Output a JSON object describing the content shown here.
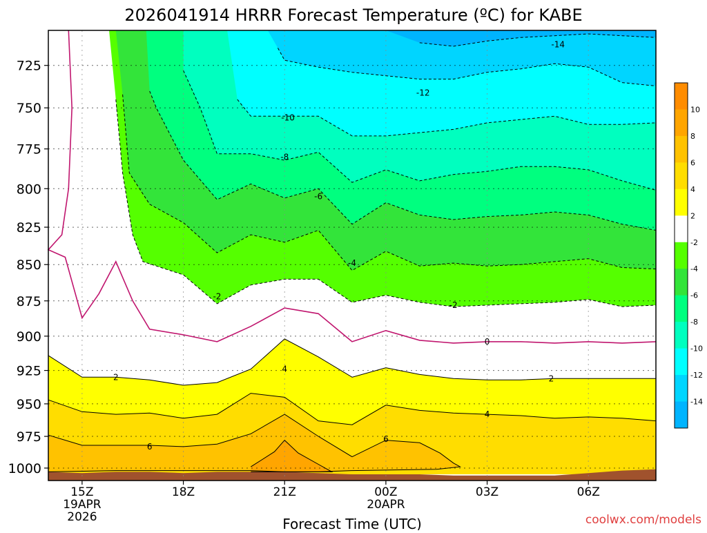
{
  "title": "2026041914 HRRR Forecast Temperature (ºC) for KABE",
  "xlabel": "Forecast Time (UTC)",
  "watermark": "coolwx.com/models",
  "colors": {
    "ground": "#a0522d",
    "contour_zero": "#c0156e",
    "watermark": "#e04040"
  },
  "legend": {
    "labels": [
      "10",
      "8",
      "6",
      "4",
      "2",
      "-2",
      "-4",
      "-6",
      "-8",
      "-10",
      "-12",
      "-14"
    ],
    "colors": [
      "#ff8c00",
      "#ffa500",
      "#ffc200",
      "#ffdd00",
      "#ffff00",
      "#ffffff",
      "#55ff00",
      "#33e43a",
      "#00ff7f",
      "#00ffbf",
      "#00ffff",
      "#00d5ff",
      "#00b4ff"
    ]
  },
  "chart_data": {
    "type": "heatmap",
    "title": "2026041914 HRRR Forecast Temperature (ºC) for KABE",
    "xlabel": "Forecast Time (UTC)",
    "ylabel": "",
    "units": "ºC",
    "x_ticks": [
      {
        "hour": 15,
        "label": "15Z",
        "label2": "19APR",
        "label3": "2026"
      },
      {
        "hour": 18,
        "label": "18Z"
      },
      {
        "hour": 21,
        "label": "21Z"
      },
      {
        "hour": 24,
        "label": "00Z",
        "label2": "20APR"
      },
      {
        "hour": 27,
        "label": "03Z"
      },
      {
        "hour": 30,
        "label": "06Z"
      }
    ],
    "xlim": [
      14,
      32
    ],
    "y_ticks": [
      725,
      750,
      775,
      800,
      825,
      850,
      875,
      900,
      925,
      950,
      975,
      1000
    ],
    "ylim": [
      705,
      1010
    ],
    "y_scale": "log",
    "grid": true,
    "contour_levels": [
      -14,
      -12,
      -10,
      -8,
      -6,
      -4,
      -2,
      0,
      2,
      4,
      6,
      8,
      10
    ],
    "contour_labels": [
      {
        "text": "-14",
        "hour": 29.1,
        "pressure": 713
      },
      {
        "text": "-12",
        "hour": 25.1,
        "pressure": 741
      },
      {
        "text": "-10",
        "hour": 21.1,
        "pressure": 756
      },
      {
        "text": "-8",
        "hour": 21.0,
        "pressure": 780
      },
      {
        "text": "-6",
        "hour": 22.0,
        "pressure": 805
      },
      {
        "text": "-4",
        "hour": 23.0,
        "pressure": 849
      },
      {
        "text": "-2",
        "hour": 19.0,
        "pressure": 872
      },
      {
        "text": "-2",
        "hour": 26.0,
        "pressure": 878
      },
      {
        "text": "0",
        "hour": 27.0,
        "pressure": 904
      },
      {
        "text": "2",
        "hour": 16.0,
        "pressure": 930
      },
      {
        "text": "2",
        "hour": 28.9,
        "pressure": 931
      },
      {
        "text": "4",
        "hour": 21.0,
        "pressure": 924
      },
      {
        "text": "4",
        "hour": 27.0,
        "pressure": 958
      },
      {
        "text": "6",
        "hour": 17.0,
        "pressure": 983
      },
      {
        "text": "6",
        "hour": 24.0,
        "pressure": 977
      }
    ],
    "regions": [
      {
        "level": 2,
        "color": "#ffff00",
        "points": [
          [
            14,
            914
          ],
          [
            15,
            930
          ],
          [
            16,
            930
          ],
          [
            17,
            932
          ],
          [
            18,
            936
          ],
          [
            19,
            934
          ],
          [
            20,
            924
          ],
          [
            21,
            902
          ],
          [
            22,
            915
          ],
          [
            23,
            930
          ],
          [
            24,
            923
          ],
          [
            25,
            928
          ],
          [
            26,
            931
          ],
          [
            27,
            932
          ],
          [
            28,
            932
          ],
          [
            29,
            931
          ],
          [
            30,
            931
          ],
          [
            31,
            931
          ],
          [
            32,
            931
          ],
          [
            32,
            1005
          ],
          [
            14,
            1005
          ]
        ]
      },
      {
        "level": 4,
        "color": "#ffdd00",
        "points": [
          [
            14,
            947
          ],
          [
            15,
            956
          ],
          [
            16,
            958
          ],
          [
            17,
            957
          ],
          [
            18,
            961
          ],
          [
            19,
            958
          ],
          [
            20,
            942
          ],
          [
            21,
            945
          ],
          [
            22,
            963
          ],
          [
            23,
            966
          ],
          [
            24,
            951
          ],
          [
            25,
            955
          ],
          [
            26,
            957
          ],
          [
            27,
            958
          ],
          [
            28,
            959
          ],
          [
            29,
            961
          ],
          [
            30,
            960
          ],
          [
            31,
            961
          ],
          [
            32,
            963
          ],
          [
            32,
            1005
          ],
          [
            14,
            1005
          ]
        ]
      },
      {
        "level": 6,
        "color": "#ffc200",
        "points": [
          [
            14,
            974
          ],
          [
            15,
            982
          ],
          [
            16,
            982
          ],
          [
            17,
            982
          ],
          [
            18,
            983
          ],
          [
            19,
            981
          ],
          [
            20,
            973
          ],
          [
            21,
            958
          ],
          [
            22,
            975
          ],
          [
            23,
            991
          ],
          [
            24,
            978
          ],
          [
            25,
            980
          ],
          [
            25.6,
            988
          ],
          [
            26.0,
            996
          ],
          [
            26.2,
            999
          ],
          [
            25.5,
            1001
          ],
          [
            23,
            1002
          ],
          [
            22,
            1003
          ],
          [
            21,
            1003
          ],
          [
            20,
            1002
          ],
          [
            18,
            1002
          ],
          [
            16,
            1002
          ],
          [
            14,
            1003
          ],
          [
            14,
            1005
          ]
        ]
      },
      {
        "level": 8,
        "color": "#ffa500",
        "points": [
          [
            20.0,
            999
          ],
          [
            20.7,
            987
          ],
          [
            21,
            978
          ],
          [
            21.4,
            988
          ],
          [
            22.0,
            997
          ],
          [
            22.4,
            1003
          ],
          [
            21,
            1003
          ],
          [
            20,
            1003
          ]
        ]
      }
    ],
    "neg_regions": [
      {
        "level": -2,
        "color": "#55ff00",
        "points": [
          [
            15.8,
            705
          ],
          [
            16.0,
            745
          ],
          [
            16.2,
            790
          ],
          [
            16.5,
            830
          ],
          [
            16.8,
            848
          ],
          [
            18,
            857
          ],
          [
            19,
            877
          ],
          [
            20,
            864
          ],
          [
            21,
            860
          ],
          [
            22,
            860
          ],
          [
            23,
            876
          ],
          [
            24,
            871
          ],
          [
            25,
            876
          ],
          [
            26,
            879
          ],
          [
            27,
            878
          ],
          [
            28,
            877
          ],
          [
            29,
            876
          ],
          [
            30,
            874
          ],
          [
            31,
            879
          ],
          [
            32,
            878
          ],
          [
            32,
            705
          ]
        ]
      },
      {
        "level": -4,
        "color": "#33e43a",
        "points": [
          [
            16.0,
            705
          ],
          [
            16.2,
            742
          ],
          [
            16.4,
            790
          ],
          [
            17.0,
            810
          ],
          [
            18,
            822
          ],
          [
            19,
            842
          ],
          [
            20,
            830
          ],
          [
            21,
            835
          ],
          [
            22,
            827
          ],
          [
            23,
            854
          ],
          [
            24,
            841
          ],
          [
            25,
            851
          ],
          [
            26,
            849
          ],
          [
            27,
            851
          ],
          [
            28,
            850
          ],
          [
            29,
            848
          ],
          [
            30,
            846
          ],
          [
            31,
            852
          ],
          [
            32,
            853
          ],
          [
            32,
            705
          ]
        ]
      },
      {
        "level": -6,
        "color": "#00ff7f",
        "points": [
          [
            16.9,
            705
          ],
          [
            17.0,
            740
          ],
          [
            17.2,
            750
          ],
          [
            18,
            782
          ],
          [
            19,
            807
          ],
          [
            20,
            797
          ],
          [
            21,
            806
          ],
          [
            22,
            800
          ],
          [
            23,
            823
          ],
          [
            24,
            809
          ],
          [
            25,
            817
          ],
          [
            26,
            820
          ],
          [
            27,
            818
          ],
          [
            28,
            817
          ],
          [
            29,
            815
          ],
          [
            30,
            817
          ],
          [
            31,
            823
          ],
          [
            32,
            827
          ],
          [
            32,
            705
          ]
        ]
      },
      {
        "level": -8,
        "color": "#00ffbf",
        "points": [
          [
            18.0,
            705
          ],
          [
            18.0,
            728
          ],
          [
            18.5,
            750
          ],
          [
            19.0,
            778
          ],
          [
            20,
            778
          ],
          [
            21,
            782
          ],
          [
            22,
            777
          ],
          [
            23,
            796
          ],
          [
            24,
            788
          ],
          [
            25,
            795
          ],
          [
            26,
            791
          ],
          [
            27,
            789
          ],
          [
            28,
            786
          ],
          [
            29,
            786
          ],
          [
            30,
            788
          ],
          [
            31,
            795
          ],
          [
            32,
            801
          ],
          [
            32,
            705
          ]
        ]
      },
      {
        "level": -10,
        "color": "#00ffff",
        "points": [
          [
            19.3,
            705
          ],
          [
            19.6,
            745
          ],
          [
            20,
            755
          ],
          [
            21,
            755
          ],
          [
            22,
            755
          ],
          [
            23,
            767
          ],
          [
            24,
            767
          ],
          [
            25,
            765
          ],
          [
            26,
            763
          ],
          [
            27,
            759
          ],
          [
            28,
            757
          ],
          [
            29,
            755
          ],
          [
            30,
            760
          ],
          [
            31,
            760
          ],
          [
            32,
            759
          ],
          [
            32,
            705
          ]
        ]
      },
      {
        "level": -12,
        "color": "#00d5ff",
        "points": [
          [
            20.5,
            705
          ],
          [
            20.8,
            715
          ],
          [
            21,
            722
          ],
          [
            22,
            726
          ],
          [
            23,
            729
          ],
          [
            24,
            731
          ],
          [
            25,
            733
          ],
          [
            26,
            733
          ],
          [
            27,
            729
          ],
          [
            28,
            727
          ],
          [
            29,
            724
          ],
          [
            30,
            726
          ],
          [
            31,
            735
          ],
          [
            32,
            737
          ],
          [
            32,
            705
          ]
        ]
      },
      {
        "level": -14,
        "color": "#00b4ff",
        "points": [
          [
            24.0,
            705
          ],
          [
            25,
            712
          ],
          [
            26,
            714
          ],
          [
            27,
            711
          ],
          [
            28,
            709
          ],
          [
            29,
            708
          ],
          [
            30,
            707
          ],
          [
            31,
            708
          ],
          [
            32,
            709
          ],
          [
            32,
            705
          ]
        ]
      }
    ],
    "zero_line": [
      [
        14.6,
        705
      ],
      [
        14.7,
        750
      ],
      [
        14.6,
        800
      ],
      [
        14.4,
        830
      ],
      [
        14,
        840
      ],
      [
        14.5,
        845
      ],
      [
        15.0,
        887
      ],
      [
        15.5,
        870
      ],
      [
        16.0,
        848
      ],
      [
        16.5,
        875
      ],
      [
        17.0,
        895
      ],
      [
        18,
        899
      ],
      [
        19,
        904
      ],
      [
        20,
        893
      ],
      [
        21,
        880
      ],
      [
        22,
        884
      ],
      [
        23,
        904
      ],
      [
        24,
        896
      ],
      [
        25,
        903
      ],
      [
        26,
        905
      ],
      [
        27,
        904
      ],
      [
        28,
        904
      ],
      [
        29,
        905
      ],
      [
        30,
        904
      ],
      [
        31,
        905
      ],
      [
        32,
        904
      ]
    ],
    "ground_line": [
      [
        14,
        1003
      ],
      [
        15,
        1004
      ],
      [
        16,
        1003
      ],
      [
        17,
        1003
      ],
      [
        18,
        1004
      ],
      [
        19,
        1003
      ],
      [
        20,
        1003
      ],
      [
        21,
        1003
      ],
      [
        22,
        1004
      ],
      [
        23,
        1005
      ],
      [
        24,
        1005
      ],
      [
        25,
        1005
      ],
      [
        26,
        1006
      ],
      [
        27,
        1006
      ],
      [
        28,
        1006
      ],
      [
        29,
        1006
      ],
      [
        30,
        1004
      ],
      [
        31,
        1002
      ],
      [
        32,
        1001
      ]
    ]
  }
}
